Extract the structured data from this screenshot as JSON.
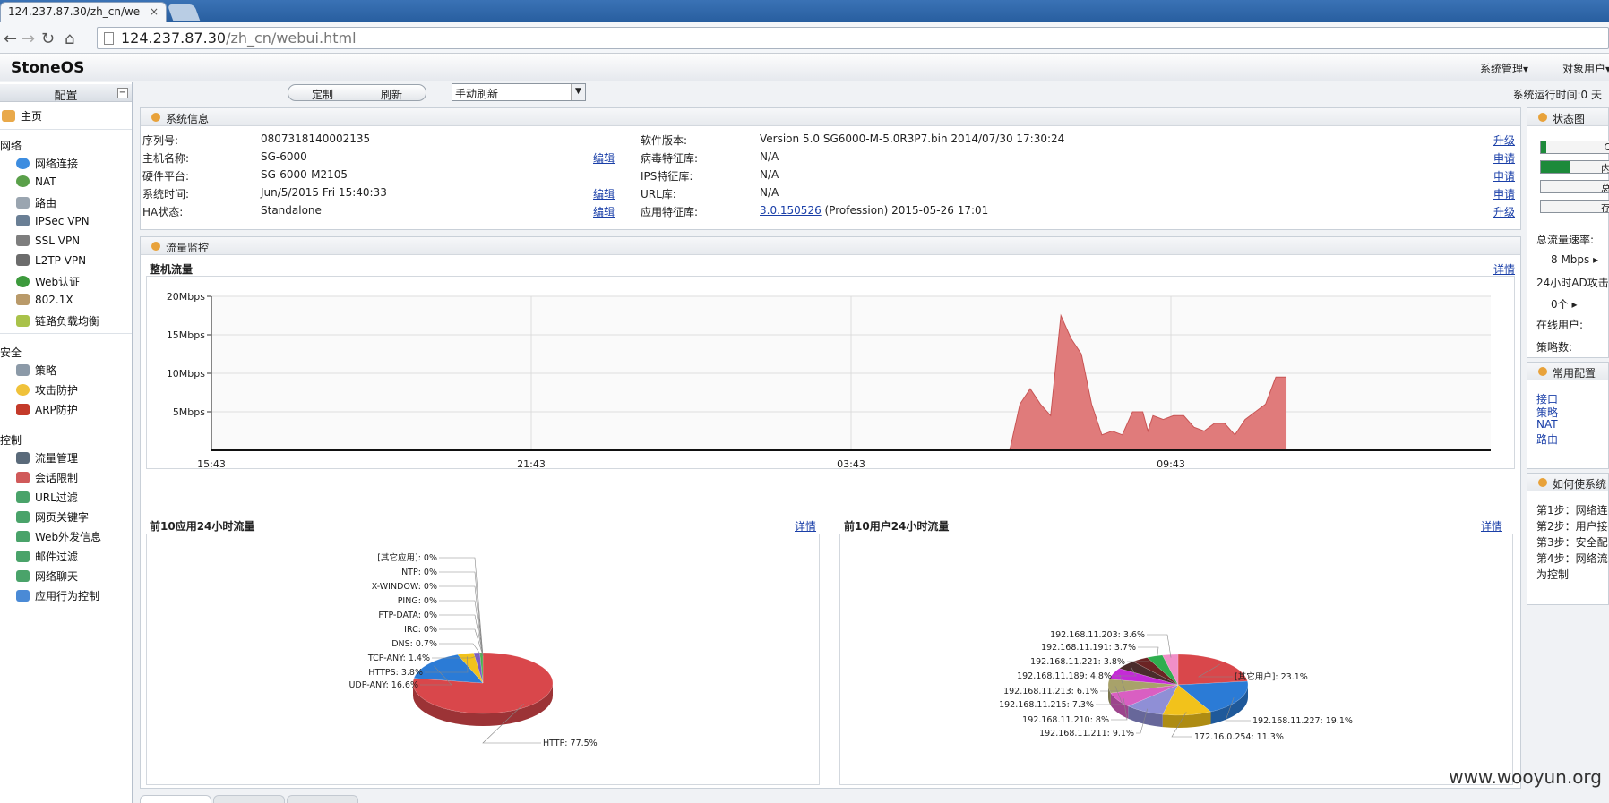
{
  "browser": {
    "tab_title": "124.237.87.30/zh_cn/we",
    "close": "×",
    "url_host": "124.237.87.30",
    "url_path": "/zh_cn/webui.html"
  },
  "app": {
    "brand": "StoneOS",
    "menu": [
      "系统管理▾",
      "对象用户▾"
    ]
  },
  "sidebar": {
    "title": "配置",
    "collapse": "−",
    "home": "主页",
    "groups": [
      {
        "label": "网络",
        "items": [
          "网络连接",
          "NAT",
          "路由",
          "IPSec VPN",
          "SSL VPN",
          "L2TP VPN",
          "Web认证",
          "802.1X",
          "链路负载均衡"
        ]
      },
      {
        "label": "安全",
        "items": [
          "策略",
          "攻击防护",
          "ARP防护"
        ]
      },
      {
        "label": "控制",
        "items": [
          "流量管理",
          "会话限制",
          "URL过滤",
          "网页关键字",
          "Web外发信息",
          "邮件过滤",
          "网络聊天",
          "应用行为控制"
        ]
      }
    ]
  },
  "toolbar": {
    "customize": "定制",
    "refresh": "刷新",
    "refresh_mode": "手动刷新",
    "arrow": "▼",
    "uptime": "系统运行时间:0 天"
  },
  "sysinfo": {
    "title": "系统信息",
    "left": [
      {
        "label": "序列号:",
        "value": "0807318140002135",
        "action": ""
      },
      {
        "label": "主机名称:",
        "value": "SG-6000",
        "action": "编辑"
      },
      {
        "label": "硬件平台:",
        "value": "SG-6000-M2105",
        "action": ""
      },
      {
        "label": "系统时间:",
        "value": "Jun/5/2015  Fri  15:40:33",
        "action": "编辑"
      },
      {
        "label": "HA状态:",
        "value": "Standalone",
        "action": "编辑"
      }
    ],
    "right": [
      {
        "label": "软件版本:",
        "value": "Version 5.0 SG6000-M-5.0R3P7.bin 2014/07/30 17:30:24",
        "action": "升级"
      },
      {
        "label": "病毒特征库:",
        "value": "N/A",
        "action": "申请"
      },
      {
        "label": "IPS特征库:",
        "value": "N/A",
        "action": "申请"
      },
      {
        "label": "URL库:",
        "value": "N/A",
        "action": "申请"
      },
      {
        "label": "应用特征库:",
        "value_link": "3.0.150526",
        "value": " (Profession) 2015-05-26 17:01",
        "action": "升级"
      }
    ]
  },
  "traffic": {
    "title": "流量监控",
    "whole_title": "整机流量",
    "detail": "详情"
  },
  "chart_data": [
    {
      "type": "area",
      "title": "整机流量",
      "y_ticks": [
        "20Mbps",
        "15Mbps",
        "10Mbps",
        "5Mbps"
      ],
      "ylim": [
        0,
        20
      ],
      "x_ticks": [
        "15:43",
        "21:43",
        "03:43",
        "09:43"
      ],
      "unit": "Mbps",
      "x": [
        0,
        0.78,
        0.79,
        0.8,
        0.81,
        0.82,
        0.83,
        0.84,
        0.85,
        0.86,
        0.87,
        0.88,
        0.89,
        0.9,
        0.91,
        0.915,
        0.92,
        0.93,
        0.94,
        0.95,
        0.96,
        0.97,
        0.98,
        0.99,
        1.0,
        1.01,
        1.02,
        1.03,
        1.04,
        1.05
      ],
      "values": [
        0,
        0,
        6,
        8,
        6,
        4.5,
        17.5,
        14.5,
        12.5,
        6,
        2,
        2.5,
        2,
        5,
        5,
        2.5,
        4.5,
        4,
        4.5,
        4.5,
        3,
        2.5,
        3.5,
        3.5,
        2,
        4,
        5,
        6,
        9.5,
        9.5
      ]
    },
    {
      "type": "pie",
      "title": "前10应用24小时流量",
      "detail": "详情",
      "labels": [
        "HTTP: 77.5%",
        "UDP-ANY: 16.6%",
        "HTTPS: 3.8%",
        "TCP-ANY: 1.4%",
        "DNS: 0.7%",
        "IRC: 0%",
        "FTP-DATA: 0%",
        "PING: 0%",
        "X-WINDOW: 0%",
        "NTP: 0%",
        "[其它应用]: 0%"
      ],
      "values": [
        77.5,
        16.6,
        3.8,
        1.4,
        0.7,
        0,
        0,
        0,
        0,
        0,
        0
      ],
      "colors": [
        "#d9474b",
        "#2b7bd6",
        "#f2c21b",
        "#7a5cc4",
        "#4caf50",
        "#999",
        "#999",
        "#999",
        "#999",
        "#999",
        "#999"
      ]
    },
    {
      "type": "pie",
      "title": "前10用户24小时流量",
      "detail": "详情",
      "labels": [
        "[其它用户]: 23.1%",
        "192.168.11.227: 19.1%",
        "172.16.0.254: 11.3%",
        "192.168.11.211: 9.1%",
        "192.168.11.210: 8%",
        "192.168.11.215: 7.3%",
        "192.168.11.213: 6.1%",
        "192.168.11.189: 4.8%",
        "192.168.11.221: 3.8%",
        "192.168.11.191: 3.7%",
        "192.168.11.203: 3.6%"
      ],
      "values": [
        23.1,
        19.1,
        11.3,
        9.1,
        8,
        7.3,
        6.1,
        4.8,
        3.8,
        3.7,
        3.6
      ],
      "colors": [
        "#d9474b",
        "#2b7bd6",
        "#f2c21b",
        "#8f8fd6",
        "#d95fc2",
        "#a8a26a",
        "#c42bd6",
        "#4a2b2b",
        "#6b2424",
        "#2fae4f",
        "#f08fc8"
      ]
    }
  ],
  "status": {
    "title": "状态图",
    "bars": [
      {
        "text": "C",
        "fill": 0.08
      },
      {
        "text": "内",
        "fill": 0.4
      },
      {
        "text": "总",
        "fill": 0
      },
      {
        "text": "存",
        "fill": 0
      }
    ],
    "rate_label": "总流量速率:",
    "rate_value": "8 Mbps ▸",
    "ad_label": "24小时AD攻击",
    "ad_value": "0个 ▸",
    "online_label": "在线用户:",
    "policy_label": "策略数:"
  },
  "common": {
    "title": "常用配置",
    "links": [
      "接口",
      "策略",
      "NAT",
      "路由"
    ]
  },
  "howto": {
    "title": "如何使系统",
    "steps": [
      "第1步：网络连",
      "第2步：用户接",
      "第3步：安全配",
      "第4步：网络流",
      "为控制"
    ]
  },
  "watermark": "www.wooyun.org"
}
